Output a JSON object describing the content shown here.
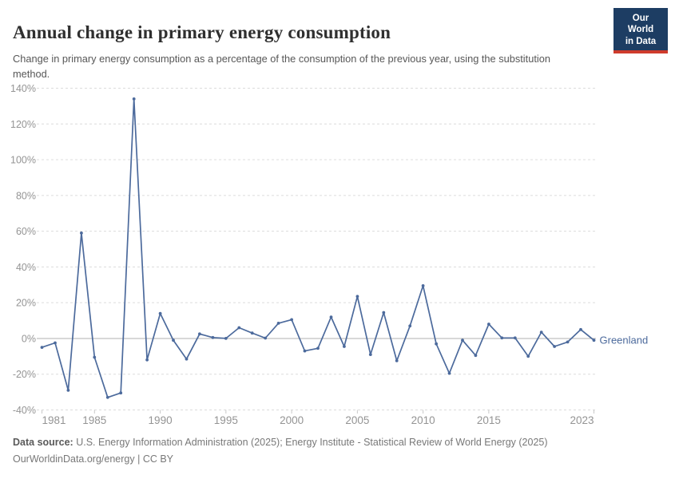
{
  "header": {
    "title": "Annual change in primary energy consumption",
    "subtitle": "Change in primary energy consumption as a percentage of the consumption of the previous year, using the substitution method."
  },
  "logo": {
    "line1": "Our World",
    "line2": "in Data"
  },
  "footer": {
    "source_label": "Data source:",
    "source_text": " U.S. Energy Information Administration (2025); Energy Institute - Statistical Review of World Energy (2025)",
    "url": "OurWorldinData.org/energy",
    "license": " | CC BY"
  },
  "colors": {
    "line": "#4c6a9c",
    "series_label": "#4c6a9c",
    "grid": "#dcdcdc",
    "zero_line": "#b0b0b0",
    "tick_label": "#949494",
    "tick_mark": "#c9c9c9",
    "logo_bg": "#1d3d63",
    "logo_red": "#cf3b2c"
  },
  "chart_data": {
    "type": "line",
    "title": "Annual change in primary energy consumption",
    "series_label": "Greenland",
    "unit": "%",
    "grid": "horizontal-dashed",
    "legend_position": "inline-right",
    "xlim": [
      1981,
      2023
    ],
    "ylim": [
      -40,
      140
    ],
    "y_ticks": [
      140,
      120,
      100,
      80,
      60,
      40,
      20,
      0,
      -20,
      -40
    ],
    "x_ticks": [
      1981,
      1985,
      1990,
      1995,
      2000,
      2005,
      2010,
      2015,
      2023
    ],
    "x": [
      1981,
      1982,
      1983,
      1984,
      1985,
      1986,
      1987,
      1988,
      1989,
      1990,
      1991,
      1992,
      1993,
      1994,
      1995,
      1996,
      1997,
      1998,
      1999,
      2000,
      2001,
      2002,
      2003,
      2004,
      2005,
      2006,
      2007,
      2008,
      2009,
      2010,
      2011,
      2012,
      2013,
      2014,
      2015,
      2016,
      2017,
      2018,
      2019,
      2020,
      2021,
      2022,
      2023
    ],
    "values": [
      -5,
      -2.5,
      -29,
      59,
      -10.5,
      -33,
      -30.5,
      134,
      -12,
      14,
      -1,
      -11.5,
      2.5,
      0.5,
      0,
      6,
      3,
      0.2,
      8.5,
      10.5,
      -7,
      -5.5,
      12,
      -4.5,
      23.5,
      -9,
      14.5,
      -12.5,
      7,
      29.5,
      -3,
      -19.5,
      -1,
      -9.5,
      8,
      0.3,
      0.3,
      -10,
      3.5,
      -4.5,
      -2,
      5,
      -1
    ]
  }
}
